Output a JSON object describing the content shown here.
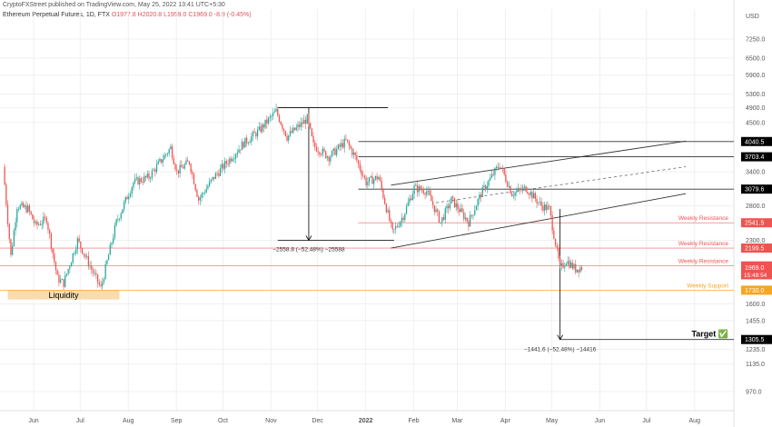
{
  "header": {
    "published": "CryptoFXStreet published on TradingView.com, May 25, 2022 13:41 UTC+5:30",
    "symbol": "Ethereum Perpetual Futures, 1D, FTX",
    "open": "O1977.8",
    "high": "H2020.8",
    "low": "L1959.0",
    "close": "C1969.0",
    "change": "-8.9 (-0.45%)"
  },
  "colors": {
    "up": "#26a69a",
    "down": "#ef5350",
    "resistance": "#ef5350",
    "support": "#f5a623",
    "liquidity_zone": "#f9dcae",
    "line": "#000000"
  },
  "chart_data": {
    "type": "candlestick",
    "currency": "USD",
    "scale": "log",
    "ylim": [
      870,
      8000
    ],
    "y_ticks": [
      "7250.0",
      "6500.0",
      "5900.0",
      "5300.0",
      "4900.0",
      "4500.0",
      "3400.0",
      "2800.0",
      "2300.0",
      "1600.0",
      "1455.0",
      "1235.0",
      "1135.0",
      "970.0"
    ],
    "x_ticks": [
      "Jun",
      "Jul",
      "Aug",
      "Sep",
      "Oct",
      "Nov",
      "Dec",
      "2022",
      "Feb",
      "Mar",
      "Apr",
      "May",
      "Jun",
      "Jul",
      "Aug"
    ],
    "x_range": [
      "2021-05-15",
      "2022-08-31"
    ],
    "candles_start": "2021-05-18",
    "candles_end": "2022-05-25",
    "price_path": [
      [
        "2021-05-18",
        3500
      ],
      [
        "2021-05-23",
        2100
      ],
      [
        "2021-05-27",
        2800
      ],
      [
        "2021-06-03",
        2750
      ],
      [
        "2021-06-08",
        2500
      ],
      [
        "2021-06-15",
        2600
      ],
      [
        "2021-06-22",
        1850
      ],
      [
        "2021-06-26",
        1800
      ],
      [
        "2021-07-05",
        2300
      ],
      [
        "2021-07-14",
        1950
      ],
      [
        "2021-07-20",
        1750
      ],
      [
        "2021-07-30",
        2550
      ],
      [
        "2021-08-10",
        3200
      ],
      [
        "2021-08-20",
        3300
      ],
      [
        "2021-09-03",
        3900
      ],
      [
        "2021-09-07",
        3400
      ],
      [
        "2021-09-15",
        3600
      ],
      [
        "2021-09-21",
        2900
      ],
      [
        "2021-10-01",
        3300
      ],
      [
        "2021-10-20",
        4000
      ],
      [
        "2021-10-30",
        4300
      ],
      [
        "2021-11-10",
        4800
      ],
      [
        "2021-11-17",
        4150
      ],
      [
        "2021-11-30",
        4600
      ],
      [
        "2021-12-04",
        3950
      ],
      [
        "2021-12-14",
        3700
      ],
      [
        "2021-12-25",
        4050
      ],
      [
        "2021-12-31",
        3700
      ],
      [
        "2022-01-07",
        3200
      ],
      [
        "2022-01-15",
        3300
      ],
      [
        "2022-01-24",
        2400
      ],
      [
        "2022-01-31",
        2650
      ],
      [
        "2022-02-07",
        3100
      ],
      [
        "2022-02-15",
        3050
      ],
      [
        "2022-02-24",
        2550
      ],
      [
        "2022-03-03",
        2900
      ],
      [
        "2022-03-14",
        2550
      ],
      [
        "2022-03-22",
        3000
      ],
      [
        "2022-04-03",
        3550
      ],
      [
        "2022-04-11",
        3000
      ],
      [
        "2022-04-20",
        3100
      ],
      [
        "2022-04-30",
        2800
      ],
      [
        "2022-05-05",
        2750
      ],
      [
        "2022-05-12",
        1950
      ],
      [
        "2022-05-16",
        2050
      ],
      [
        "2022-05-22",
        1950
      ],
      [
        "2022-05-25",
        1969
      ]
    ],
    "horizontal_levels": [
      {
        "label": "4040.5",
        "price": 4040.5,
        "start": "2022-01-01",
        "end": "2022-08-31",
        "style": "black"
      },
      {
        "label": "3703.4",
        "price": 3703.4,
        "start": "2022-01-01",
        "end": "2022-08-31",
        "style": "black"
      },
      {
        "label": "3079.6",
        "price": 3079.6,
        "start": "2022-01-01",
        "end": "2022-08-31",
        "style": "black"
      },
      {
        "label": "2541.5",
        "price": 2541.5,
        "start": "2022-01-01",
        "end": "2022-08-31",
        "style": "resistance",
        "text": "Weekly Resistance"
      },
      {
        "label": "2199.5",
        "price": 2199.5,
        "start": "2021-05-15",
        "end": "2022-08-31",
        "style": "resistance",
        "text": "Weekly Resistance"
      },
      {
        "label": "1986.8",
        "price": 1986.8,
        "start": "2021-05-15",
        "end": "2022-08-31",
        "style": "resistance",
        "text": "Weekly Resistance"
      },
      {
        "label": "1730.0",
        "price": 1730.0,
        "start": "2021-05-15",
        "end": "2022-08-31",
        "style": "support",
        "text": "Weekly Support"
      },
      {
        "label": "1305.5",
        "price": 1305.5,
        "start": "2022-05-11",
        "end": "2022-08-31",
        "style": "black",
        "text": "Target ✅"
      }
    ],
    "current_price_label": "1969.0",
    "countdown_label": "15:48:54",
    "liquidity": {
      "text": "Liquidity",
      "price_low": 1640,
      "price_high": 1730,
      "start": "2021-05-20",
      "end": "2021-07-31"
    },
    "channel": {
      "upper": [
        [
          "2022-01-22",
          3150
        ],
        [
          "2022-07-31",
          4050
        ]
      ],
      "lower": [
        [
          "2022-01-22",
          2200
        ],
        [
          "2022-07-31",
          3000
        ]
      ],
      "mid": [
        [
          "2022-02-20",
          2850
        ],
        [
          "2022-07-31",
          3500
        ]
      ]
    },
    "measures": [
      {
        "text": "−2558.8 (−52.48%) −25588",
        "top_price": 4900,
        "bottom_price": 2300,
        "x": "2021-11-30",
        "top_start": "2021-11-10",
        "top_end": "2022-01-20",
        "bottom_start": "2021-11-10",
        "bottom_end": "2022-01-24"
      },
      {
        "text": "−1441.6 (−52.48%) −14416",
        "top_price": 2750,
        "bottom_price": 1305.5,
        "x": "2022-05-11"
      }
    ]
  }
}
